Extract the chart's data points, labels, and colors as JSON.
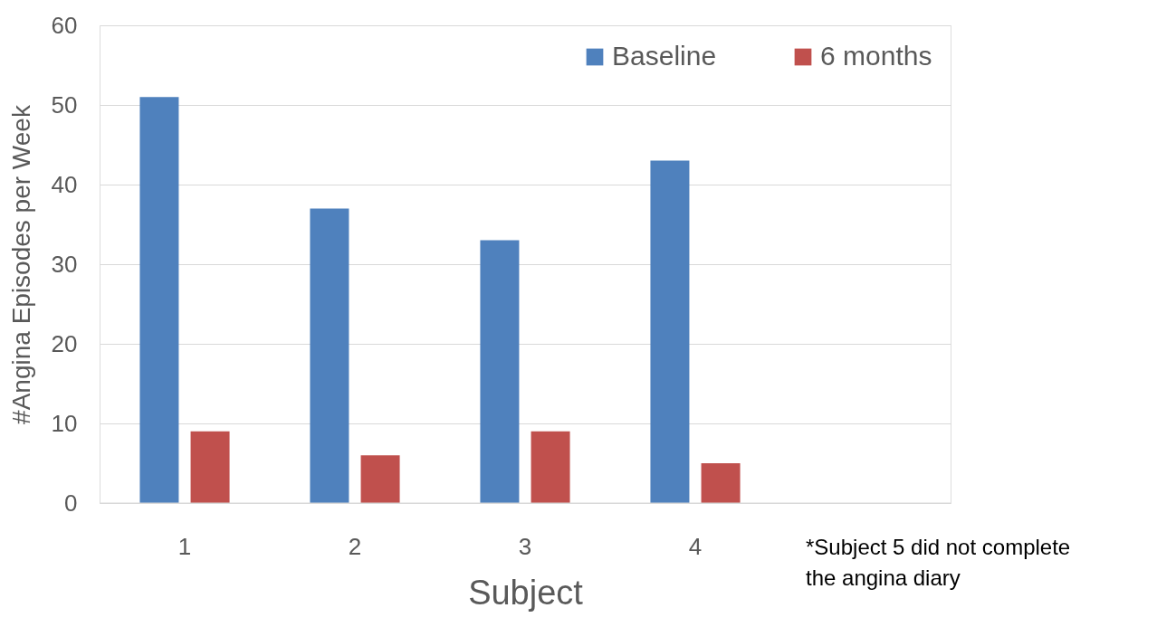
{
  "chart_data": {
    "type": "bar",
    "xlabel": "Subject",
    "ylabel": "#Angina Episodes per Week",
    "categories": [
      "1",
      "2",
      "3",
      "4",
      null
    ],
    "series": [
      {
        "name": "Baseline",
        "color": "#4f81bd",
        "values": [
          51,
          37,
          33,
          43,
          null
        ]
      },
      {
        "name": "6 months",
        "color": "#c0504d",
        "values": [
          9,
          6,
          9,
          5,
          null
        ]
      }
    ],
    "ylim": [
      0,
      60
    ],
    "yticks": [
      0,
      10,
      20,
      30,
      40,
      50,
      60
    ],
    "grid": "y",
    "legend": "top right",
    "annotations": [
      "*Subject 5 did not complete\nthe angina diary"
    ]
  }
}
